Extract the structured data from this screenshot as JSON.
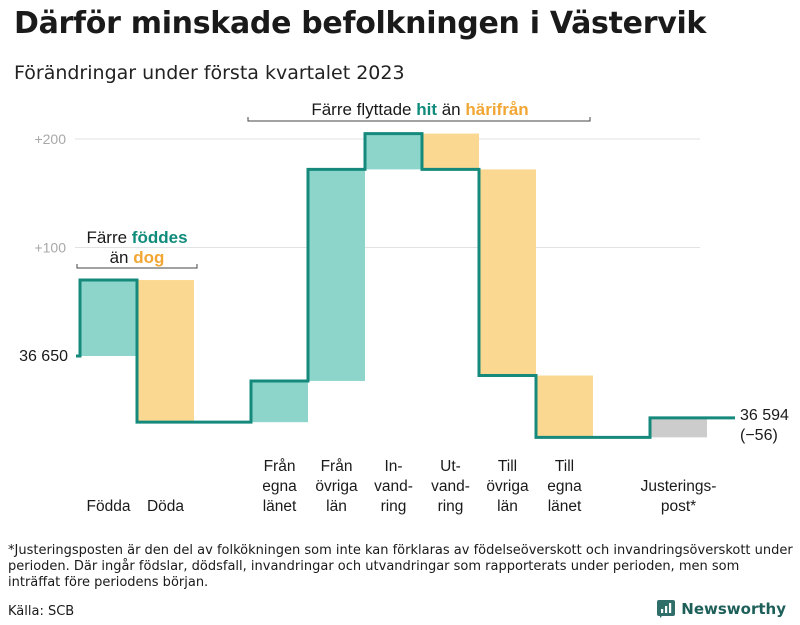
{
  "title": "Därför minskade befolkningen i Västervik",
  "subtitle": "Förändringar under första kvartalet 2023",
  "chart_data": {
    "type": "waterfall",
    "y_start": 36650,
    "y_end": 36594,
    "y_end_change_label": "(−56)",
    "y_start_label": "36 650",
    "y_end_label": "36 594",
    "ytick_labels": [
      "+200",
      "+100"
    ],
    "ytick_values": [
      200,
      100
    ],
    "ylim": [
      -100,
      230
    ],
    "colors": {
      "in": "#8dd5cb",
      "out": "#fbd891",
      "adjust": "#cccccc",
      "line": "#158a7c",
      "grid": "#e2e2e2",
      "hit": "#0f8b7b",
      "harifran": "#f2a634"
    },
    "steps": [
      {
        "label": "Födda",
        "value": 70,
        "kind": "in",
        "gap_after": false
      },
      {
        "label": "Döda",
        "value": -131,
        "kind": "out",
        "gap_after": true
      },
      {
        "label": "Från\negna\nlänet",
        "value": 38,
        "kind": "in",
        "gap_after": false
      },
      {
        "label": "Från\növriga\nlän",
        "value": 195,
        "kind": "in",
        "gap_after": false
      },
      {
        "label": "In-\nvand-\nring",
        "value": 33,
        "kind": "in",
        "gap_after": false
      },
      {
        "label": "Ut-\nvand-\nring",
        "value": -33,
        "kind": "out",
        "gap_after": false
      },
      {
        "label": "Till\növriga\nlän",
        "value": -190,
        "kind": "out",
        "gap_after": false
      },
      {
        "label": "Till\negna\nlänet",
        "value": -57,
        "kind": "out",
        "gap_after": true
      },
      {
        "label": "Justerings-\npost*",
        "value": 18,
        "kind": "adjust",
        "gap_after": false
      }
    ]
  },
  "annotations": {
    "group1_line1": "Färre ",
    "group1_line1_hl": "föddes",
    "group1_line2": "än ",
    "group1_line2_hl": "dog",
    "group2_text": "Färre flyttade ",
    "group2_hl1": "hit",
    "group2_mid": " än ",
    "group2_hl2": "härifrån"
  },
  "footnote": "*Justeringsposten är den del av folkökningen som inte kan förklaras av födelseöverskott och invandringsöverskott under perioden. Där ingår födslar, dödsfall, invandringar och utvandringar som rapporterats under perioden, men som inträffat före periodens början.",
  "source": "Källa: SCB",
  "brand": "Newsworthy"
}
